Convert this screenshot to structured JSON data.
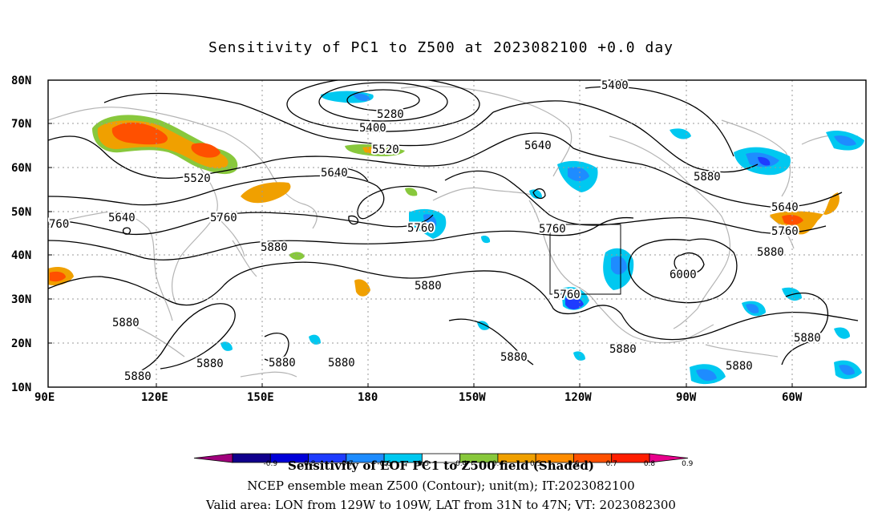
{
  "title": "Sensitivity of PC1 to Z500 at 2023082100 +0.0 day",
  "axes": {
    "x_ticks": [
      "90E",
      "120E",
      "150E",
      "180",
      "150W",
      "120W",
      "90W",
      "60W"
    ],
    "y_ticks": [
      "80N",
      "70N",
      "60N",
      "50N",
      "40N",
      "30N",
      "20N",
      "10N"
    ]
  },
  "contour_labels": [
    "5400",
    "5280",
    "5400",
    "5520",
    "5640",
    "5520",
    "5640",
    "5640",
    "5760",
    "5760",
    "5760",
    "5760",
    "5640",
    "5880",
    "5880",
    "5880",
    "6000",
    "5880",
    "5880",
    "5880",
    "5880",
    "5880",
    "5880",
    "5880",
    "5880",
    "5880",
    "5880",
    "760",
    "5760"
  ],
  "colorbar": {
    "labels": [
      "-0.9",
      "-0.8",
      "-0.7",
      "-0.6",
      "-0.5",
      "-0.4",
      "0.4",
      "0.5",
      "0.6",
      "0.7",
      "0.8",
      "0.9"
    ],
    "colors": [
      "#a0007c",
      "#10008c",
      "#0000d8",
      "#1e3cff",
      "#1e8cff",
      "#00c8f0",
      "#ffffff",
      "#88c83c",
      "#f0a000",
      "#ff8c00",
      "#ff5000",
      "#ff1e00",
      "#e8008c"
    ]
  },
  "footer": {
    "line1": "Sensitivity of EOF PC1 to Z500 field (Shaded)",
    "line2": "NCEP ensemble mean Z500 (Contour); unit(m); IT:2023082100",
    "line3": "Valid area: LON from 129W to 109W, LAT from 31N to 47N; VT: 2023082300"
  }
}
